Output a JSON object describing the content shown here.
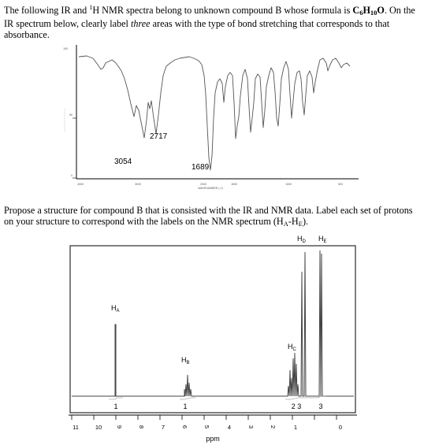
{
  "question_1": {
    "prefix": "The following IR and ",
    "nmr_sup": "1",
    "middle": "H NMR spectra belong to unknown compound B whose formula is ",
    "formula_c": "C",
    "formula_c_n": "6",
    "formula_h": "H",
    "formula_h_n": "10",
    "formula_o": "O",
    "after_formula": ". On the IR spectrum below, clearly label ",
    "emphasis": "three",
    "suffix": " areas with the type of bond stretching that corresponds to that absorbance."
  },
  "question_2": {
    "prefix": "Propose a structure for compound B that is consisted with the IR and NMR data. Label each set of protons on your structure to correspond with the labels on the NMR spectrum (H",
    "sub_a": "A",
    "dash": "-H",
    "sub_e": "E",
    "suffix": ")."
  },
  "ir_spectrum": {
    "annotations": [
      "3054",
      "2717",
      "1689"
    ],
    "y_ticks": [
      "100",
      "50",
      "0"
    ],
    "x_ticks": [
      "4000",
      "3000",
      "2000",
      "1500",
      "1000",
      "500"
    ],
    "x_label": "WAVENUMBER (-1)"
  },
  "nmr_spectrum": {
    "x_ticks": [
      "11",
      "10",
      "9",
      "8",
      "7",
      "6",
      "5",
      "4",
      "3",
      "2",
      "1",
      "0"
    ],
    "x_label": "ppm",
    "peak_labels": [
      {
        "main": "H",
        "sub": "A"
      },
      {
        "main": "H",
        "sub": "B"
      },
      {
        "main": "H",
        "sub": "C"
      },
      {
        "main": "H",
        "sub": "D"
      },
      {
        "main": "H",
        "sub": "E"
      }
    ],
    "integrations": [
      "1",
      "1",
      "2 3",
      "3"
    ]
  },
  "colors": {
    "spectrum_line": "#555555",
    "frame": "#000000"
  }
}
